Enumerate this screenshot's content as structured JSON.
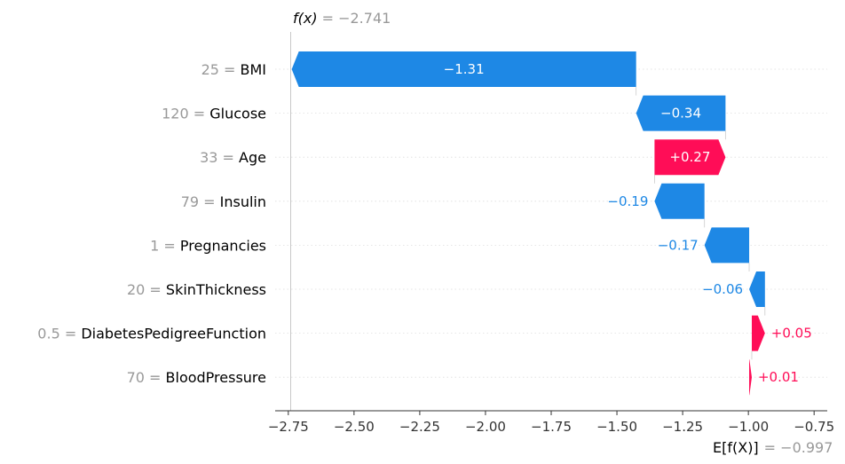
{
  "chart_data": {
    "type": "waterfall",
    "fx_label": "f(x)",
    "fx_value": "= −2.741",
    "fx": -2.741,
    "efx_label": "E[f(X)]",
    "efx_value": "= −0.997",
    "efx": -0.997,
    "xlim": [
      -2.8,
      -0.7
    ],
    "xticks": [
      -2.75,
      -2.5,
      -2.25,
      -2.0,
      -1.75,
      -1.5,
      -1.25,
      -1.0,
      -0.75
    ],
    "xtick_labels": [
      "−2.75",
      "−2.50",
      "−2.25",
      "−2.00",
      "−1.75",
      "−1.50",
      "−1.25",
      "−1.00",
      "−0.75"
    ],
    "features": [
      {
        "value": "25",
        "name": "BMI",
        "contribution": -1.31,
        "label": "−1.31"
      },
      {
        "value": "120",
        "name": "Glucose",
        "contribution": -0.34,
        "label": "−0.34"
      },
      {
        "value": "33",
        "name": "Age",
        "contribution": 0.27,
        "label": "+0.27"
      },
      {
        "value": "79",
        "name": "Insulin",
        "contribution": -0.19,
        "label": "−0.19"
      },
      {
        "value": "1",
        "name": "Pregnancies",
        "contribution": -0.17,
        "label": "−0.17"
      },
      {
        "value": "20",
        "name": "SkinThickness",
        "contribution": -0.06,
        "label": "−0.06"
      },
      {
        "value": "0.5",
        "name": "DiabetesPedigreeFunction",
        "contribution": 0.05,
        "label": "+0.05"
      },
      {
        "value": "70",
        "name": "BloodPressure",
        "contribution": 0.01,
        "label": "+0.01"
      }
    ],
    "colors": {
      "positive": "#ff0d57",
      "negative": "#1e88e5",
      "text_grey": "#999999"
    }
  }
}
